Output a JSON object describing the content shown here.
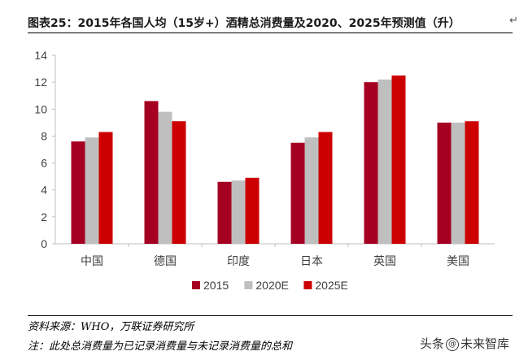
{
  "title": "图表25：2015年各国人均（15岁+）酒精总消费量及2020、2025年预测值（升）",
  "notes": {
    "source": "资料来源：WHO，万联证券研究所",
    "note": "注：此处总消费量为已记录消费量与未记录消费量的总和"
  },
  "watermark": {
    "prefix": "头条",
    "brand": "未来智库",
    "icon": "at-icon"
  },
  "chart_data": {
    "type": "bar",
    "categories": [
      "中国",
      "德国",
      "印度",
      "日本",
      "英国",
      "美国"
    ],
    "series": [
      {
        "name": "2015",
        "values": [
          7.6,
          10.6,
          4.6,
          7.5,
          12.0,
          9.0
        ],
        "color": "#a50021"
      },
      {
        "name": "2020E",
        "values": [
          7.9,
          9.8,
          4.7,
          7.9,
          12.2,
          9.0
        ],
        "color": "#bfbfbf"
      },
      {
        "name": "2025E",
        "values": [
          8.3,
          9.1,
          4.9,
          8.3,
          12.5,
          9.1
        ],
        "color": "#cc0000"
      }
    ],
    "ylim": [
      0,
      14
    ],
    "yticks": [
      "0",
      "2",
      "4",
      "6",
      "8",
      "10",
      "12",
      "14"
    ],
    "grid": false,
    "legend_position": "bottom"
  }
}
